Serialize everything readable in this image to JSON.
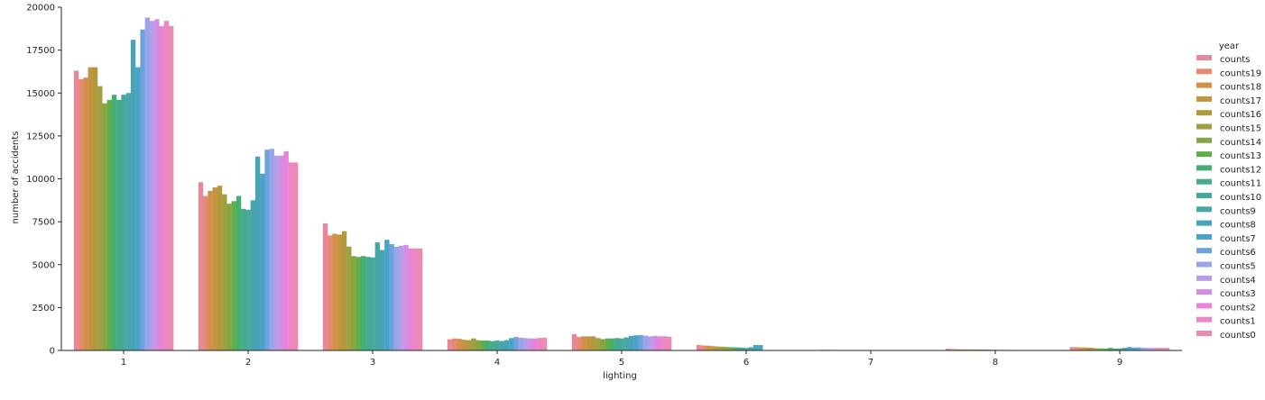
{
  "chart_data": {
    "type": "bar",
    "title": "",
    "xlabel": "lighting",
    "ylabel": "number of accidents",
    "ylim": [
      0,
      20000
    ],
    "yticks": [
      0,
      2500,
      5000,
      7500,
      10000,
      12500,
      15000,
      17500,
      20000
    ],
    "grid": false,
    "legend_title": "year",
    "legend_position": "right",
    "categories": [
      "1",
      "2",
      "3",
      "4",
      "5",
      "6",
      "7",
      "8",
      "9"
    ],
    "series": [
      {
        "name": "counts",
        "color": "#e7879a",
        "values": [
          16300,
          9800,
          7400,
          650,
          950,
          320,
          40,
          100,
          200
        ]
      },
      {
        "name": "counts19",
        "color": "#e48a73",
        "values": [
          15800,
          9000,
          6700,
          700,
          780,
          290,
          35,
          80,
          190
        ]
      },
      {
        "name": "counts18",
        "color": "#d4904a",
        "values": [
          15900,
          9300,
          6800,
          680,
          820,
          280,
          30,
          70,
          180
        ]
      },
      {
        "name": "counts17",
        "color": "#c49441",
        "values": [
          16500,
          9500,
          6750,
          620,
          820,
          250,
          25,
          60,
          170
        ]
      },
      {
        "name": "counts16",
        "color": "#b19a3e",
        "values": [
          16500,
          9600,
          6950,
          600,
          820,
          230,
          25,
          60,
          160
        ]
      },
      {
        "name": "counts15",
        "color": "#9da140",
        "values": [
          15400,
          9100,
          6050,
          700,
          720,
          220,
          20,
          60,
          130
        ]
      },
      {
        "name": "counts14",
        "color": "#88a543",
        "values": [
          14400,
          8550,
          5500,
          600,
          660,
          200,
          20,
          50,
          120
        ]
      },
      {
        "name": "counts13",
        "color": "#62ae4d",
        "values": [
          14600,
          8700,
          5450,
          580,
          700,
          190,
          15,
          50,
          110
        ]
      },
      {
        "name": "counts12",
        "color": "#44ae73",
        "values": [
          14900,
          9000,
          5500,
          580,
          700,
          180,
          15,
          50,
          150
        ]
      },
      {
        "name": "counts11",
        "color": "#44ab8d",
        "values": [
          14600,
          8250,
          5450,
          540,
          720,
          170,
          15,
          40,
          110
        ]
      },
      {
        "name": "counts10",
        "color": "#46a99b",
        "values": [
          14900,
          8200,
          5420,
          580,
          700,
          150,
          10,
          40,
          120
        ]
      },
      {
        "name": "counts9",
        "color": "#47a6a8",
        "values": [
          15000,
          8750,
          6300,
          550,
          760,
          190,
          10,
          30,
          150
        ]
      },
      {
        "name": "counts8",
        "color": "#48a3b6",
        "values": [
          18100,
          11300,
          5850,
          600,
          850,
          320,
          10,
          30,
          200
        ]
      },
      {
        "name": "counts7",
        "color": "#4ba2c7",
        "values": [
          16500,
          10300,
          6450,
          720,
          880,
          310,
          10,
          30,
          170
        ]
      },
      {
        "name": "counts6",
        "color": "#6ea2dd",
        "values": [
          18700,
          11700,
          6200,
          780,
          900,
          0,
          0,
          0,
          180
        ]
      },
      {
        "name": "counts5",
        "color": "#99a5ea",
        "values": [
          19400,
          11750,
          6050,
          740,
          860,
          0,
          0,
          0,
          160
        ]
      },
      {
        "name": "counts4",
        "color": "#b59de8",
        "values": [
          19200,
          11350,
          6100,
          720,
          820,
          0,
          0,
          0,
          150
        ]
      },
      {
        "name": "counts3",
        "color": "#d38ee3",
        "values": [
          19300,
          11350,
          6150,
          700,
          850,
          0,
          0,
          0,
          150
        ]
      },
      {
        "name": "counts2",
        "color": "#e784d7",
        "values": [
          18900,
          11600,
          5950,
          700,
          820,
          0,
          0,
          0,
          150
        ]
      },
      {
        "name": "counts1",
        "color": "#e988c2",
        "values": [
          19200,
          10950,
          5950,
          730,
          830,
          0,
          0,
          0,
          150
        ]
      },
      {
        "name": "counts0",
        "color": "#ea8bb1",
        "values": [
          18900,
          10950,
          5950,
          740,
          800,
          0,
          0,
          0,
          150
        ]
      }
    ]
  }
}
